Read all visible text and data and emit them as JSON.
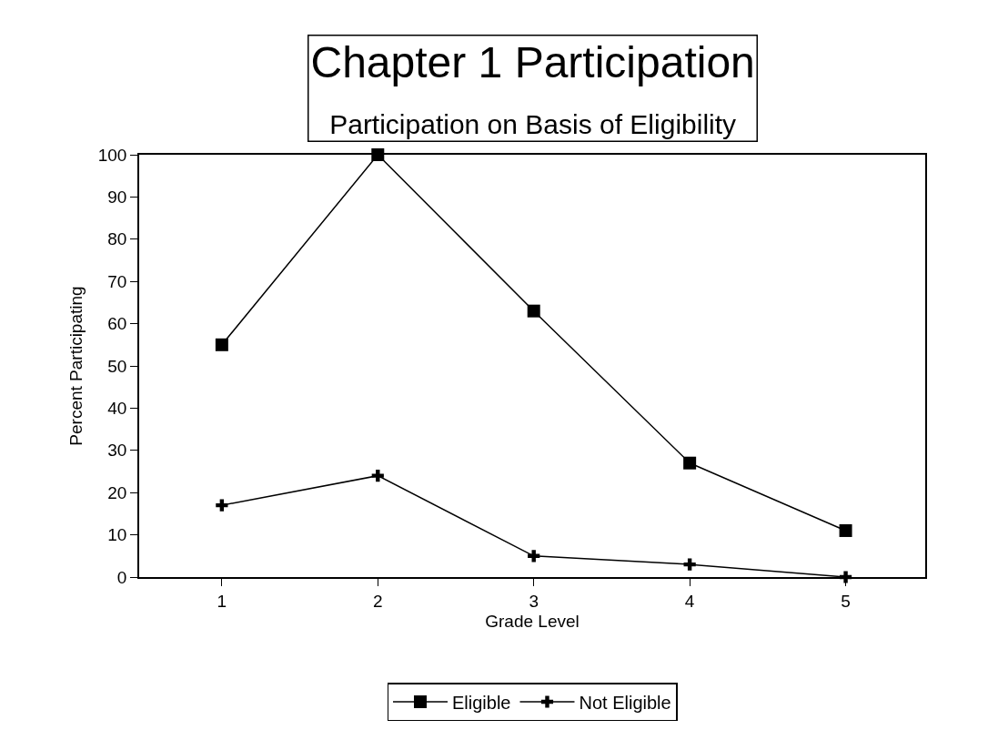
{
  "chart_data": {
    "type": "line",
    "title": "Chapter 1 Participation",
    "subtitle": "Participation on Basis of Eligibility",
    "xlabel": "Grade Level",
    "ylabel": "Percent Participating",
    "x": [
      1,
      2,
      3,
      4,
      5
    ],
    "xlim": [
      0.47,
      5.51
    ],
    "xticks": [
      1,
      2,
      3,
      4,
      5
    ],
    "ylim": [
      0,
      100
    ],
    "yticks": [
      0,
      10,
      20,
      30,
      40,
      50,
      60,
      70,
      80,
      90,
      100
    ],
    "series": [
      {
        "name": "Eligible",
        "color": "#000000",
        "marker": "square",
        "values": [
          55,
          100,
          63,
          27,
          11
        ]
      },
      {
        "name": "Not Eligible",
        "color": "#000000",
        "marker": "cross",
        "values": [
          17,
          24,
          5,
          3,
          0
        ]
      }
    ],
    "legend": "bottom",
    "line_style": "solid"
  }
}
